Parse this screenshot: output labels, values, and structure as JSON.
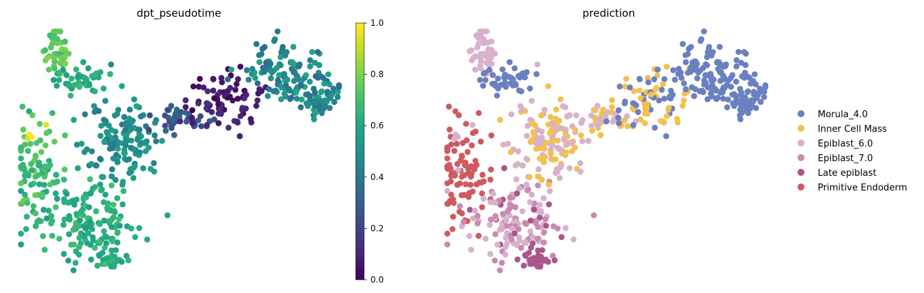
{
  "chart_data": [
    {
      "type": "scatter",
      "title": "dpt_pseudotime",
      "color_by": "dpt_pseudotime",
      "colormap": "viridis",
      "colorbar": {
        "min": 0.0,
        "max": 1.0,
        "ticks": [
          "0.0",
          "0.2",
          "0.4",
          "0.6",
          "0.8",
          "1.0"
        ]
      },
      "axes_visible": false,
      "grid": false,
      "regions": [
        {
          "name_hint": "top-left arm",
          "value_range": [
            0.68,
            0.85
          ]
        },
        {
          "name_hint": "upper arm",
          "value_range": [
            0.55,
            0.68
          ]
        },
        {
          "name_hint": "left bulk",
          "value_range": [
            0.6,
            0.78
          ]
        },
        {
          "name_hint": "bottom bulk",
          "value_range": [
            0.55,
            0.7
          ]
        },
        {
          "name_hint": "center",
          "value_range": [
            0.4,
            0.58
          ]
        },
        {
          "name_hint": "bridge",
          "value_range": [
            0.2,
            0.35
          ]
        },
        {
          "name_hint": "dark band",
          "value_range": [
            0.0,
            0.15
          ]
        },
        {
          "name_hint": "right cluster",
          "value_range": [
            0.35,
            0.6
          ]
        },
        {
          "name_hint": "isolated",
          "value_range": [
            0.95,
            1.0
          ]
        }
      ]
    },
    {
      "type": "scatter",
      "title": "prediction",
      "color_by": "prediction",
      "axes_visible": false,
      "grid": false,
      "legend_position": "right",
      "legend": [
        {
          "label": "Morula_4.0",
          "color": "#6a80c0"
        },
        {
          "label": "Inner Cell Mass",
          "color": "#f2c14e"
        },
        {
          "label": "Epiblast_6.0",
          "color": "#d8b2cc"
        },
        {
          "label": "Epiblast_7.0",
          "color": "#c88ab0"
        },
        {
          "label": "Late epiblast",
          "color": "#a8568c"
        },
        {
          "label": "Primitive Endoderm",
          "color": "#d05a60"
        }
      ]
    }
  ]
}
